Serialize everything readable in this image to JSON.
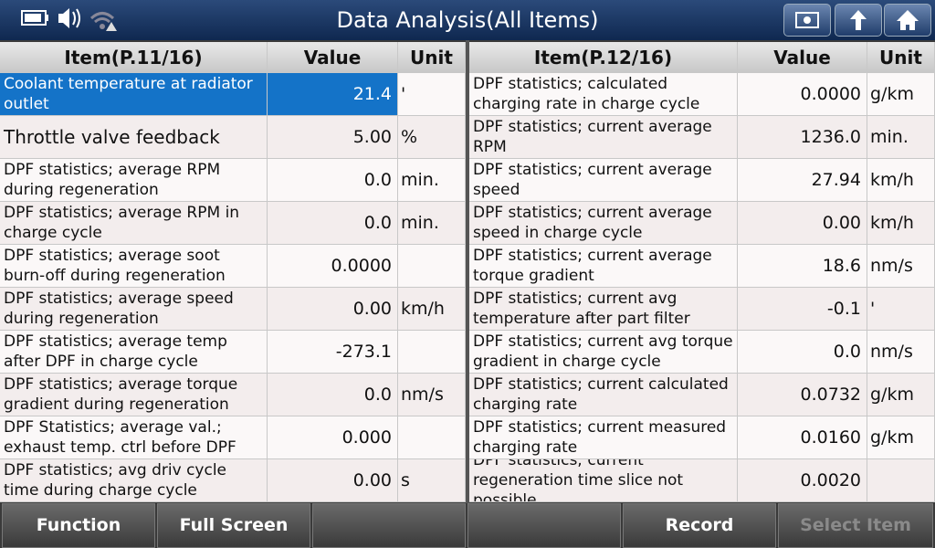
{
  "header": {
    "title": "Data Analysis(All Items)"
  },
  "tables": [
    {
      "columns": [
        "Item(P.11/16)",
        "Value",
        "Unit"
      ],
      "rows": [
        [
          "Coolant temperature at radiator outlet",
          "21.4",
          "'"
        ],
        [
          "Throttle valve feedback",
          "5.00",
          "%"
        ],
        [
          "DPF statistics; average RPM during regeneration",
          "0.0",
          "min."
        ],
        [
          "DPF statistics; average RPM in charge cycle",
          "0.0",
          "min."
        ],
        [
          "DPF statistics; average soot burn-off during regeneration",
          "0.0000",
          null
        ],
        [
          "DPF statistics; average speed during regeneration",
          "0.00",
          "km/h"
        ],
        [
          "DPF statistics; average temp after DPF in charge cycle",
          "-273.1",
          null
        ],
        [
          "DPF statistics; average torque gradient during regeneration",
          "0.0",
          "nm/s"
        ],
        [
          "DPF Statistics; average val.; exhaust temp. ctrl before DPF",
          "0.000",
          null
        ],
        [
          "DPF statistics; avg driv cycle time during charge cycle",
          "0.00",
          "s"
        ]
      ]
    },
    {
      "columns": [
        "Item(P.12/16)",
        "Value",
        "Unit"
      ],
      "rows": [
        [
          "DPF statistics; calculated charging rate in charge cycle",
          "0.0000",
          "g/km"
        ],
        [
          "DPF statistics; current average RPM",
          "1236.0",
          "min."
        ],
        [
          "DPF statistics; current average speed",
          "27.94",
          "km/h"
        ],
        [
          "DPF statistics; current average speed in charge cycle",
          "0.00",
          "km/h"
        ],
        [
          "DPF statistics; current average torque gradient",
          "18.6",
          "nm/s"
        ],
        [
          "DPF statistics; current avg temperature after part filter",
          "-0.1",
          "'"
        ],
        [
          "DPF statistics; current avg torque gradient in charge cycle",
          "0.0",
          "nm/s"
        ],
        [
          "DPF statistics; current calculated charging rate",
          "0.0732",
          "g/km"
        ],
        [
          "DPF statistics; current measured charging rate",
          "0.0160",
          "g/km"
        ],
        [
          "DPF statistics; current regeneration time slice not possible",
          "0.0020",
          null
        ]
      ]
    }
  ],
  "footer": {
    "buttons": [
      "Function",
      "Full Screen",
      "Record",
      "Select Item"
    ]
  }
}
